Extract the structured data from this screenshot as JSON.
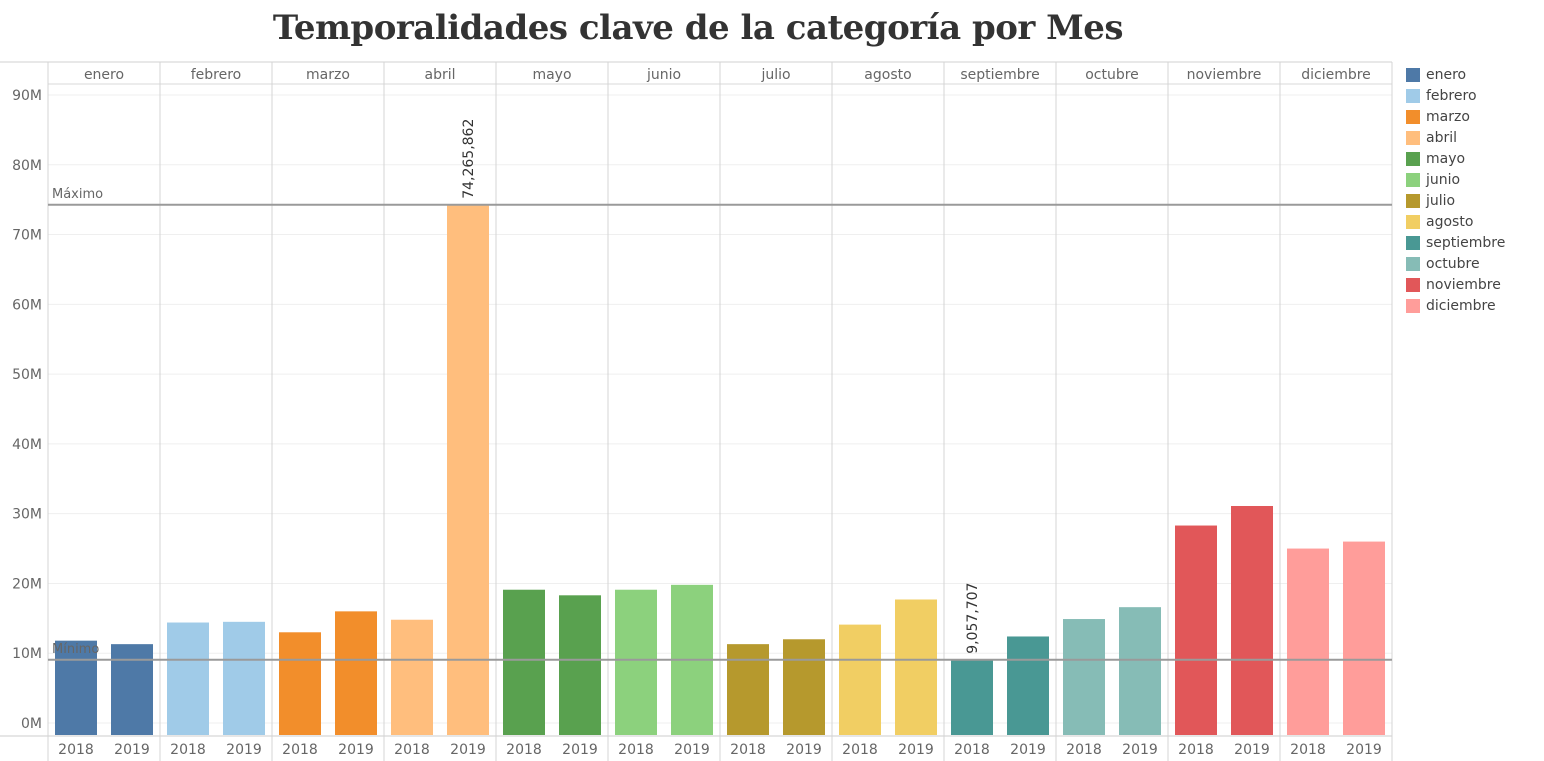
{
  "chart_data": {
    "type": "bar",
    "title": "Temporalidades clave de la categoría por Mes",
    "panels": [
      "enero",
      "febrero",
      "marzo",
      "abril",
      "mayo",
      "junio",
      "julio",
      "agosto",
      "septiembre",
      "octubre",
      "noviembre",
      "diciembre"
    ],
    "categories": [
      "2018",
      "2019"
    ],
    "series": [
      {
        "name": "enero",
        "color": "#4e79a7",
        "values": [
          11800000,
          11300000
        ]
      },
      {
        "name": "febrero",
        "color": "#a0cbe8",
        "values": [
          14400000,
          14500000
        ]
      },
      {
        "name": "marzo",
        "color": "#f28e2b",
        "values": [
          13000000,
          16000000
        ]
      },
      {
        "name": "abril",
        "color": "#ffbe7d",
        "values": [
          14800000,
          74265862
        ]
      },
      {
        "name": "mayo",
        "color": "#59a14f",
        "values": [
          19100000,
          18300000
        ]
      },
      {
        "name": "junio",
        "color": "#8cd17d",
        "values": [
          19100000,
          19800000
        ]
      },
      {
        "name": "julio",
        "color": "#b6992d",
        "values": [
          11300000,
          12000000
        ]
      },
      {
        "name": "agosto",
        "color": "#f1ce63",
        "values": [
          14100000,
          17700000
        ]
      },
      {
        "name": "septiembre",
        "color": "#499894",
        "values": [
          9057707,
          12400000
        ]
      },
      {
        "name": "octubre",
        "color": "#86bcb6",
        "values": [
          14900000,
          16600000
        ]
      },
      {
        "name": "noviembre",
        "color": "#e15759",
        "values": [
          28300000,
          31100000
        ]
      },
      {
        "name": "diciembre",
        "color": "#ff9d9a",
        "values": [
          25000000,
          26000000
        ]
      }
    ],
    "ylim": [
      0,
      90000000
    ],
    "yticks": [
      0,
      10000000,
      20000000,
      30000000,
      40000000,
      50000000,
      60000000,
      70000000,
      80000000,
      90000000
    ],
    "ytick_labels": [
      "0M",
      "10M",
      "20M",
      "30M",
      "40M",
      "50M",
      "60M",
      "70M",
      "80M",
      "90M"
    ],
    "reference_lines": [
      {
        "label": "Máximo",
        "value": 74265862
      },
      {
        "label": "Mínimo",
        "value": 9057707
      }
    ],
    "data_labels": [
      {
        "panel": "abril",
        "category": "2019",
        "text": "74,265,862"
      },
      {
        "panel": "septiembre",
        "category": "2018",
        "text": "9,057,707"
      }
    ],
    "legend_position": "right",
    "grid": true
  }
}
